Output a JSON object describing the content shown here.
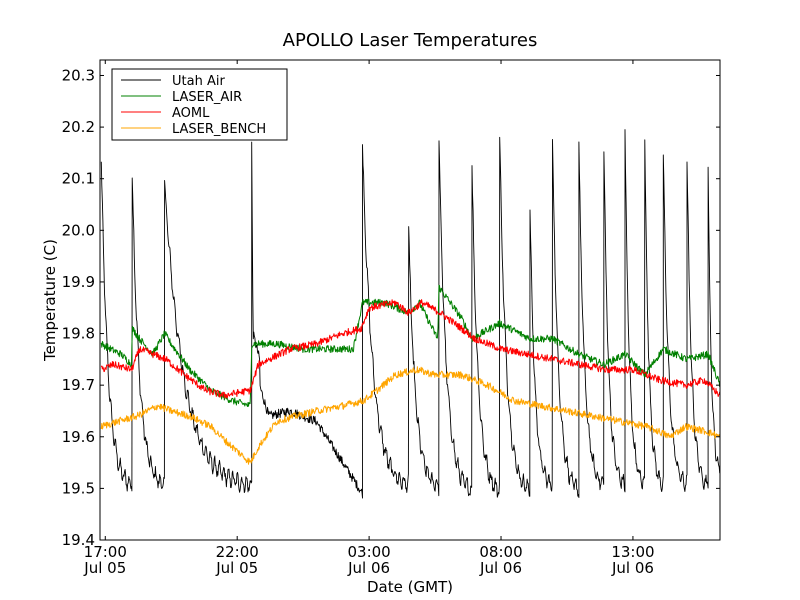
{
  "chart_data": {
    "type": "line",
    "title": "APOLLO Laser Temperatures",
    "xlabel": "Date (GMT)",
    "ylabel": "Temperature (C)",
    "xlim_hours": [
      -0.2,
      23.3
    ],
    "ylim": [
      19.4,
      20.33
    ],
    "x_ticks": [
      {
        "hour": 0,
        "time": "17:00",
        "date": "Jul 05"
      },
      {
        "hour": 5,
        "time": "22:00",
        "date": "Jul 05"
      },
      {
        "hour": 10,
        "time": "03:00",
        "date": "Jul 06"
      },
      {
        "hour": 15,
        "time": "08:00",
        "date": "Jul 06"
      },
      {
        "hour": 20,
        "time": "13:00",
        "date": "Jul 06"
      }
    ],
    "y_ticks": [
      19.4,
      19.5,
      19.6,
      19.7,
      19.8,
      19.9,
      20.0,
      20.1,
      20.2,
      20.3
    ],
    "y_tick_labels": [
      "19.4",
      "19.5",
      "19.6",
      "19.7",
      "19.8",
      "19.9",
      "20.0",
      "20.1",
      "20.2",
      "20.3"
    ],
    "legend_position": "top-left",
    "series": [
      {
        "name": "Utah Air",
        "color": "#000000",
        "spikes": [
          {
            "start": -0.15,
            "end": 1.02,
            "peak": 20.13,
            "base": 19.5
          },
          {
            "start": 1.02,
            "end": 2.25,
            "peak": 20.11,
            "base": 19.5
          },
          {
            "start": 2.25,
            "end": 5.55,
            "peak": 20.09,
            "base": 19.5
          },
          {
            "start": 5.55,
            "end": 9.75,
            "peak": 20.17,
            "base": 19.49
          },
          {
            "start": 9.75,
            "end": 11.5,
            "peak": 20.16,
            "base": 19.5
          },
          {
            "start": 11.5,
            "end": 12.65,
            "peak": 20.0,
            "base": 19.5
          },
          {
            "start": 12.65,
            "end": 13.9,
            "peak": 20.17,
            "base": 19.49
          },
          {
            "start": 13.9,
            "end": 14.95,
            "peak": 20.12,
            "base": 19.49
          },
          {
            "start": 14.95,
            "end": 16.1,
            "peak": 20.18,
            "base": 19.49
          },
          {
            "start": 16.1,
            "end": 16.95,
            "peak": 20.04,
            "base": 19.5
          },
          {
            "start": 16.95,
            "end": 17.95,
            "peak": 20.18,
            "base": 19.49
          },
          {
            "start": 17.95,
            "end": 18.9,
            "peak": 20.17,
            "base": 19.5
          },
          {
            "start": 18.9,
            "end": 19.7,
            "peak": 20.16,
            "base": 19.5
          },
          {
            "start": 19.7,
            "end": 20.45,
            "peak": 20.19,
            "base": 19.5
          },
          {
            "start": 20.45,
            "end": 21.15,
            "peak": 20.18,
            "base": 19.5
          },
          {
            "start": 21.15,
            "end": 22.05,
            "peak": 20.15,
            "base": 19.5
          },
          {
            "start": 22.05,
            "end": 22.85,
            "peak": 20.14,
            "base": 19.5
          },
          {
            "start": 22.85,
            "end": 23.3,
            "peak": 20.12,
            "base": 19.52
          }
        ],
        "plateau": {
          "start": 5.55,
          "end": 9.75,
          "hours": [
            5.55,
            6.2,
            7.0,
            8.0,
            9.0,
            9.75
          ],
          "values": [
            19.75,
            19.64,
            19.65,
            19.63,
            19.55,
            19.49
          ]
        }
      },
      {
        "name": "LASER_AIR",
        "color": "#008000",
        "x": [
          -0.15,
          0.2,
          0.6,
          1.0,
          1.02,
          1.3,
          1.8,
          2.25,
          2.5,
          3.2,
          4.0,
          4.8,
          5.5,
          5.55,
          6.5,
          7.5,
          8.5,
          9.4,
          9.75,
          10.6,
          11.5,
          11.9,
          12.6,
          12.65,
          13.5,
          13.9,
          14.95,
          16.1,
          16.95,
          17.95,
          18.9,
          19.7,
          20.45,
          21.15,
          22.05,
          22.85,
          23.3
        ],
        "y": [
          19.78,
          19.77,
          19.76,
          19.74,
          19.81,
          19.79,
          19.76,
          19.8,
          19.78,
          19.73,
          19.69,
          19.67,
          19.66,
          19.78,
          19.78,
          19.77,
          19.77,
          19.77,
          19.86,
          19.86,
          19.84,
          19.86,
          19.79,
          19.89,
          19.83,
          19.79,
          19.82,
          19.79,
          19.79,
          19.76,
          19.74,
          19.76,
          19.72,
          19.77,
          19.75,
          19.76,
          19.7
        ]
      },
      {
        "name": "AOML",
        "color": "#ff0000",
        "x": [
          -0.15,
          0.3,
          1.0,
          1.3,
          1.8,
          2.3,
          3.0,
          3.8,
          4.5,
          5.5,
          5.8,
          7.0,
          8.0,
          9.0,
          9.7,
          10.0,
          11.0,
          11.5,
          12.0,
          12.7,
          13.5,
          14.0,
          15.0,
          16.0,
          17.0,
          18.0,
          19.0,
          20.0,
          21.0,
          22.0,
          22.7,
          23.3
        ],
        "y": [
          19.73,
          19.74,
          19.73,
          19.77,
          19.76,
          19.75,
          19.72,
          19.69,
          19.68,
          19.69,
          19.74,
          19.77,
          19.78,
          19.8,
          19.81,
          19.85,
          19.86,
          19.84,
          19.86,
          19.84,
          19.81,
          19.79,
          19.77,
          19.76,
          19.75,
          19.74,
          19.73,
          19.73,
          19.71,
          19.7,
          19.71,
          19.68
        ]
      },
      {
        "name": "LASER_BENCH",
        "color": "#ffa500",
        "x": [
          -0.15,
          0.5,
          1.2,
          2.0,
          2.5,
          3.2,
          4.0,
          4.6,
          5.5,
          5.8,
          6.5,
          7.2,
          8.0,
          9.0,
          9.8,
          10.3,
          11.0,
          11.8,
          12.5,
          13.5,
          14.5,
          15.5,
          16.5,
          17.5,
          18.5,
          19.5,
          20.5,
          21.0,
          21.4,
          22.0,
          22.8,
          23.3
        ],
        "y": [
          19.62,
          19.63,
          19.64,
          19.66,
          19.65,
          19.64,
          19.62,
          19.59,
          19.55,
          19.58,
          19.63,
          19.64,
          19.65,
          19.66,
          19.67,
          19.69,
          19.72,
          19.73,
          19.72,
          19.72,
          19.7,
          19.67,
          19.66,
          19.65,
          19.64,
          19.63,
          19.62,
          19.61,
          19.6,
          19.62,
          19.61,
          19.6
        ]
      }
    ]
  }
}
